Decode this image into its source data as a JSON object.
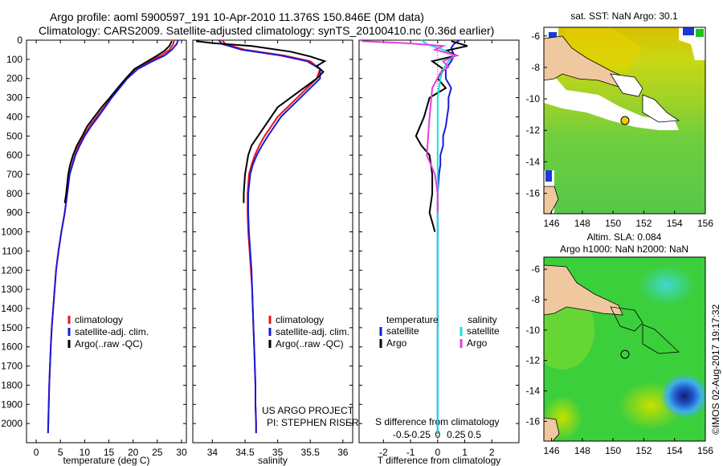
{
  "header": {
    "line1": "Argo profile: aoml 5900597_191 10-Apr-2010 11.376S 150.846E (DM data)",
    "line2": "Climatology: CARS2009. Satellite-adjusted climatology: synTS_20100410.nc (0.36d earlier)"
  },
  "project": {
    "line1": "US ARGO PROJECT",
    "line2": "PI: STEPHEN RISER"
  },
  "stamp": "©IMOS 02-Aug-2017 19:17:32",
  "colors": {
    "clim": "#e8141c",
    "sat": "#1a1adb",
    "argo": "#000000",
    "sat_s": "#14e0e0",
    "argo_s": "#e83ce0"
  },
  "chart_data": [
    {
      "type": "line",
      "title": "",
      "xlabel": "temperature (deg C)",
      "ylabel": "",
      "xlim": [
        -2,
        31
      ],
      "ylim": [
        2100,
        0
      ],
      "xticks": [
        "0",
        "5",
        "10",
        "15",
        "20",
        "25",
        "30"
      ],
      "yticks": [
        "0",
        "100",
        "200",
        "300",
        "400",
        "500",
        "600",
        "700",
        "800",
        "900",
        "1000",
        "1100",
        "1200",
        "1300",
        "1400",
        "1500",
        "1600",
        "1700",
        "1800",
        "1900",
        "2000"
      ],
      "legend": [
        "climatology",
        "satellite-adj. clim.",
        "Argo(..raw -QC)"
      ],
      "series": [
        {
          "name": "climatology",
          "color": "#e8141c",
          "points": [
            [
              28.5,
              0
            ],
            [
              28.3,
              20
            ],
            [
              27.5,
              50
            ],
            [
              25.8,
              80
            ],
            [
              23.5,
              110
            ],
            [
              20.5,
              150
            ],
            [
              18.5,
              200
            ],
            [
              17,
              250
            ],
            [
              15.5,
              300
            ],
            [
              14,
              350
            ],
            [
              12.5,
              400
            ],
            [
              11,
              450
            ],
            [
              9.8,
              500
            ],
            [
              8.8,
              550
            ],
            [
              8,
              600
            ],
            [
              7.4,
              650
            ],
            [
              6.9,
              700
            ],
            [
              6.4,
              800
            ],
            [
              5.9,
              900
            ],
            [
              5.2,
              1000
            ],
            [
              4.6,
              1100
            ],
            [
              4.1,
              1200
            ],
            [
              3.8,
              1300
            ],
            [
              3.5,
              1400
            ],
            [
              3.2,
              1500
            ],
            [
              3,
              1600
            ],
            [
              2.85,
              1700
            ],
            [
              2.7,
              1800
            ],
            [
              2.6,
              1900
            ],
            [
              2.5,
              2000
            ],
            [
              2.45,
              2050
            ]
          ]
        },
        {
          "name": "satellite-adj. clim.",
          "color": "#1a1adb",
          "points": [
            [
              29.3,
              0
            ],
            [
              29,
              20
            ],
            [
              28,
              50
            ],
            [
              26.5,
              80
            ],
            [
              24,
              110
            ],
            [
              21,
              150
            ],
            [
              18.8,
              200
            ],
            [
              17.2,
              250
            ],
            [
              15.6,
              300
            ],
            [
              14.2,
              350
            ],
            [
              12.8,
              400
            ],
            [
              11.3,
              450
            ],
            [
              10,
              500
            ],
            [
              9,
              550
            ],
            [
              8.1,
              600
            ],
            [
              7.5,
              650
            ],
            [
              6.9,
              700
            ],
            [
              6.4,
              800
            ],
            [
              5.9,
              900
            ],
            [
              5.2,
              1000
            ],
            [
              4.6,
              1100
            ],
            [
              4.1,
              1200
            ],
            [
              3.8,
              1300
            ],
            [
              3.5,
              1400
            ],
            [
              3.2,
              1500
            ],
            [
              3,
              1600
            ],
            [
              2.85,
              1700
            ],
            [
              2.7,
              1800
            ],
            [
              2.6,
              1900
            ],
            [
              2.5,
              2000
            ],
            [
              2.45,
              2050
            ]
          ]
        },
        {
          "name": "Argo(..raw -QC)",
          "color": "#000000",
          "points": [
            [
              28,
              5
            ],
            [
              27.5,
              30
            ],
            [
              26.5,
              55
            ],
            [
              25,
              80
            ],
            [
              23,
              110
            ],
            [
              20.3,
              150
            ],
            [
              18.5,
              200
            ],
            [
              16.8,
              250
            ],
            [
              15.2,
              300
            ],
            [
              13.5,
              350
            ],
            [
              12,
              400
            ],
            [
              10.5,
              450
            ],
            [
              9.5,
              500
            ],
            [
              8.4,
              550
            ],
            [
              7.6,
              600
            ],
            [
              7,
              650
            ],
            [
              6.6,
              700
            ],
            [
              6.2,
              800
            ],
            [
              5.9,
              850
            ]
          ]
        }
      ]
    },
    {
      "type": "line",
      "title": "",
      "xlabel": "salinity",
      "ylabel": "",
      "xlim": [
        33.7,
        36.15
      ],
      "ylim": [
        2100,
        0
      ],
      "xticks": [
        "34",
        "34.5",
        "35",
        "35.5",
        "36"
      ],
      "legend": [
        "climatology",
        "satellite-adj. clim.",
        "Argo(..raw -QC)"
      ],
      "series": [
        {
          "name": "climatology",
          "color": "#e8141c",
          "points": [
            [
              34.15,
              0
            ],
            [
              34.2,
              20
            ],
            [
              34.5,
              50
            ],
            [
              35.1,
              80
            ],
            [
              35.5,
              110
            ],
            [
              35.65,
              150
            ],
            [
              35.6,
              200
            ],
            [
              35.45,
              250
            ],
            [
              35.3,
              300
            ],
            [
              35.15,
              350
            ],
            [
              35,
              400
            ],
            [
              34.9,
              450
            ],
            [
              34.8,
              500
            ],
            [
              34.72,
              550
            ],
            [
              34.65,
              600
            ],
            [
              34.6,
              650
            ],
            [
              34.56,
              700
            ],
            [
              34.54,
              800
            ],
            [
              34.54,
              900
            ],
            [
              34.55,
              1000
            ],
            [
              34.57,
              1100
            ],
            [
              34.59,
              1200
            ],
            [
              34.61,
              1300
            ],
            [
              34.62,
              1400
            ],
            [
              34.63,
              1500
            ],
            [
              34.64,
              1600
            ],
            [
              34.65,
              1700
            ],
            [
              34.66,
              1800
            ],
            [
              34.66,
              1900
            ],
            [
              34.67,
              2000
            ],
            [
              34.67,
              2050
            ]
          ]
        },
        {
          "name": "satellite-adj. clim.",
          "color": "#1a1adb",
          "points": [
            [
              34.1,
              0
            ],
            [
              34.15,
              20
            ],
            [
              34.45,
              50
            ],
            [
              35.05,
              80
            ],
            [
              35.45,
              110
            ],
            [
              35.65,
              150
            ],
            [
              35.65,
              200
            ],
            [
              35.5,
              250
            ],
            [
              35.35,
              300
            ],
            [
              35.2,
              350
            ],
            [
              35.05,
              400
            ],
            [
              34.95,
              450
            ],
            [
              34.85,
              500
            ],
            [
              34.76,
              550
            ],
            [
              34.68,
              600
            ],
            [
              34.62,
              650
            ],
            [
              34.58,
              700
            ],
            [
              34.55,
              800
            ],
            [
              34.55,
              900
            ],
            [
              34.56,
              1000
            ],
            [
              34.58,
              1100
            ],
            [
              34.6,
              1200
            ],
            [
              34.61,
              1300
            ],
            [
              34.62,
              1400
            ],
            [
              34.63,
              1500
            ],
            [
              34.64,
              1600
            ],
            [
              34.65,
              1700
            ],
            [
              34.66,
              1800
            ],
            [
              34.66,
              1900
            ],
            [
              34.67,
              2000
            ],
            [
              34.67,
              2050
            ]
          ]
        },
        {
          "name": "Argo(..raw -QC)",
          "color": "#000000",
          "points": [
            [
              33.75,
              5
            ],
            [
              34,
              15
            ],
            [
              34.6,
              30
            ],
            [
              35.2,
              60
            ],
            [
              35.5,
              85
            ],
            [
              35.72,
              110
            ],
            [
              35.6,
              135
            ],
            [
              35.7,
              165
            ],
            [
              35.6,
              200
            ],
            [
              35.4,
              250
            ],
            [
              35.2,
              300
            ],
            [
              35,
              350
            ],
            [
              34.9,
              400
            ],
            [
              34.8,
              450
            ],
            [
              34.7,
              500
            ],
            [
              34.6,
              550
            ],
            [
              34.55,
              600
            ],
            [
              34.5,
              700
            ],
            [
              34.48,
              800
            ],
            [
              34.48,
              850
            ]
          ]
        }
      ]
    },
    {
      "type": "line",
      "title": "",
      "xlabel": "T difference from climatology",
      "xlabel_top": "S difference from climatology",
      "ylabel": "",
      "xlim": [
        -2.9,
        3
      ],
      "ylim": [
        2100,
        0
      ],
      "xticks": [
        "-2",
        "-1",
        "0",
        "1",
        "2"
      ],
      "xticks_top": [
        "-0.5",
        "-0.25",
        "0",
        "0.25",
        "0.5"
      ],
      "legend_groups": [
        "temperature",
        "salinity"
      ],
      "legend": [
        "satellite",
        "Argo",
        "satellite",
        "Argo"
      ],
      "series": [
        {
          "name": "temperature satellite",
          "color": "#1a1adb",
          "points": [
            [
              0.8,
              0
            ],
            [
              0.6,
              20
            ],
            [
              0.5,
              40
            ],
            [
              0.6,
              80
            ],
            [
              0.5,
              110
            ],
            [
              0.3,
              150
            ],
            [
              0.3,
              200
            ],
            [
              0.5,
              250
            ],
            [
              0.4,
              300
            ],
            [
              0.4,
              350
            ],
            [
              0.35,
              400
            ],
            [
              0.3,
              450
            ],
            [
              0.2,
              500
            ],
            [
              0.2,
              550
            ],
            [
              0.1,
              600
            ],
            [
              0.1,
              650
            ],
            [
              0.05,
              700
            ],
            [
              0,
              800
            ],
            [
              0,
              900
            ],
            [
              0,
              1000
            ],
            [
              0,
              1200
            ],
            [
              0,
              1500
            ],
            [
              0,
              2050
            ]
          ]
        },
        {
          "name": "temperature Argo",
          "color": "#000000",
          "points": [
            [
              0.5,
              5
            ],
            [
              1.1,
              30
            ],
            [
              0.3,
              55
            ],
            [
              0.7,
              80
            ],
            [
              -0.2,
              110
            ],
            [
              0.2,
              150
            ],
            [
              0,
              200
            ],
            [
              0.3,
              250
            ],
            [
              -0.3,
              300
            ],
            [
              -0.5,
              400
            ],
            [
              -0.8,
              500
            ],
            [
              -0.6,
              550
            ],
            [
              -0.3,
              600
            ],
            [
              -0.2,
              700
            ],
            [
              -0.2,
              800
            ],
            [
              -0.3,
              900
            ],
            [
              -0.2,
              950
            ],
            [
              -0.1,
              1000
            ]
          ]
        },
        {
          "name": "salinity satellite",
          "color": "#14e0e0",
          "points": [
            [
              -0.6,
              0
            ],
            [
              -0.4,
              20
            ],
            [
              0.2,
              50
            ],
            [
              0.6,
              80
            ],
            [
              0.4,
              110
            ],
            [
              0.2,
              150
            ],
            [
              0.1,
              200
            ],
            [
              0,
              300
            ],
            [
              0,
              500
            ],
            [
              0,
              800
            ],
            [
              0,
              1000
            ],
            [
              0,
              1500
            ],
            [
              0,
              2050
            ]
          ]
        },
        {
          "name": "salinity Argo",
          "color": "#e83ce0",
          "points": [
            [
              -2.8,
              5
            ],
            [
              -1.2,
              15
            ],
            [
              0.2,
              30
            ],
            [
              -0.1,
              50
            ],
            [
              0.7,
              80
            ],
            [
              0.2,
              110
            ],
            [
              0.4,
              140
            ],
            [
              0.1,
              170
            ],
            [
              -0.2,
              250
            ],
            [
              -0.3,
              400
            ],
            [
              -0.4,
              600
            ],
            [
              -0.1,
              700
            ],
            [
              0,
              800
            ],
            [
              0,
              900
            ]
          ]
        }
      ]
    }
  ],
  "maps": {
    "sst": {
      "title": "sat. SST: NaN Argo: 30.1",
      "xticks": [
        "146",
        "148",
        "150",
        "152",
        "154",
        "156"
      ],
      "yticks": [
        "-6",
        "-8",
        "-10",
        "-12",
        "-14",
        "-16"
      ]
    },
    "sla": {
      "title_line1": "Altim. SLA: 0.084",
      "title_line2": "Argo h1000: NaN h2000: NaN",
      "xticks": [
        "146",
        "148",
        "150",
        "152",
        "154",
        "156"
      ],
      "yticks": [
        "-6",
        "-8",
        "-10",
        "-12",
        "-14",
        "-16"
      ]
    }
  }
}
